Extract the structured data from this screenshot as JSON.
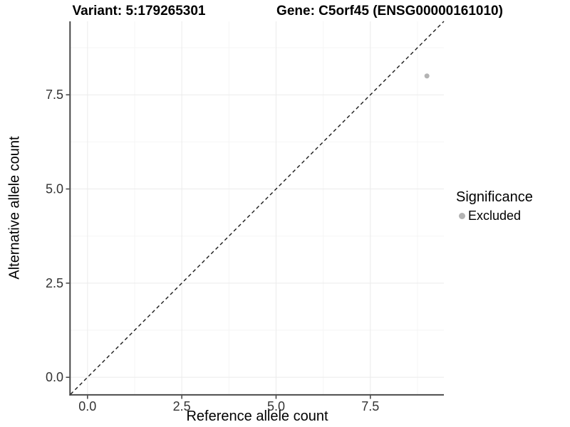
{
  "chart_data": {
    "type": "scatter",
    "titles": {
      "left": "Variant: 5:179265301",
      "right": "Gene: C5orf45 (ENSG00000161010)"
    },
    "xlabel": "Reference allele count",
    "ylabel": "Alternative allele count",
    "xlim": [
      0,
      9
    ],
    "ylim": [
      0,
      9
    ],
    "expansion": 0.05,
    "x_ticks": [
      0,
      2.5,
      5,
      7.5
    ],
    "y_ticks": [
      0,
      2.5,
      5,
      7.5
    ],
    "x_tick_labels": [
      "0.0",
      "2.5",
      "5.0",
      "7.5"
    ],
    "y_tick_labels": [
      "0.0",
      "2.5",
      "5.0",
      "7.5"
    ],
    "minor_gridlines": [
      1.25,
      3.75,
      6.25,
      8.75
    ],
    "grid": "major+minor",
    "legend": {
      "title": "Significance",
      "position": "right"
    },
    "series": [
      {
        "name": "Excluded",
        "color": "#b3b3b3",
        "points": [
          [
            9,
            8
          ]
        ]
      }
    ],
    "reference_line": {
      "type": "y=x",
      "style": "dashed",
      "color": "#1a1a1a"
    },
    "colors": {
      "background": "#ffffff",
      "grid_major": "#ebebeb",
      "grid_minor": "#f5f5f5",
      "axis": "#404040",
      "tick_text": "#333333"
    }
  }
}
